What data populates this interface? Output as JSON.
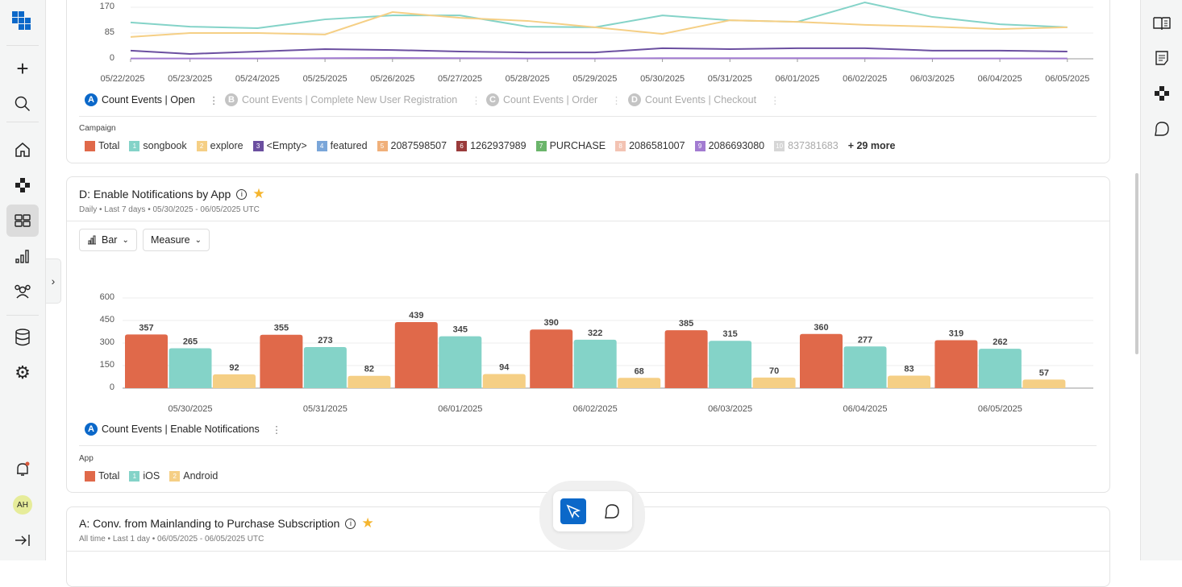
{
  "sidebar": {
    "items": [
      "apps-logo",
      "new",
      "search",
      "home",
      "components",
      "dashboards",
      "reports",
      "users",
      "data",
      "settings",
      "notifications",
      "avatar",
      "collapse"
    ],
    "avatar": "AH",
    "active": "dashboards"
  },
  "right_sidebar": {
    "items": [
      "docs-icon",
      "notes-icon",
      "components-icon",
      "chat-icon"
    ]
  },
  "card1": {
    "queries": [
      {
        "badge": "A",
        "label": "Count Events | Open",
        "active": true
      },
      {
        "badge": "B",
        "label": "Count Events | Complete New User Registration",
        "active": false
      },
      {
        "badge": "C",
        "label": "Count Events | Order",
        "active": false
      },
      {
        "badge": "D",
        "label": "Count Events | Checkout",
        "active": false
      }
    ],
    "legend_title": "Campaign",
    "legend": [
      {
        "n": "",
        "label": "Total",
        "color": "#e0694a"
      },
      {
        "n": "1",
        "label": "songbook",
        "color": "#84d3c8"
      },
      {
        "n": "2",
        "label": "explore",
        "color": "#f5cf85"
      },
      {
        "n": "3",
        "label": "<Empty>",
        "color": "#6b4fa0"
      },
      {
        "n": "4",
        "label": "featured",
        "color": "#7aa6d9"
      },
      {
        "n": "5",
        "label": "2087598507",
        "color": "#f0b07a"
      },
      {
        "n": "6",
        "label": "1262937989",
        "color": "#9a3b3b"
      },
      {
        "n": "7",
        "label": "PURCHASE",
        "color": "#6bb56b"
      },
      {
        "n": "8",
        "label": "2086581007",
        "color": "#f3c3b3"
      },
      {
        "n": "9",
        "label": "2086693080",
        "color": "#a27bd1"
      },
      {
        "n": "10",
        "label": "837381683",
        "color": "#bbbbbb",
        "dim": true
      }
    ],
    "more": "+ 29 more"
  },
  "card2": {
    "title": "D: Enable Notifications by App",
    "subtitle": "Daily • Last 7 days • 05/30/2025 - 06/05/2025 UTC",
    "chart_type_btn": "Bar",
    "measure_btn": "Measure",
    "query": {
      "badge": "A",
      "label": "Count Events | Enable Notifications"
    },
    "legend_title": "App",
    "legend": [
      {
        "n": "",
        "label": "Total",
        "color": "#e0694a"
      },
      {
        "n": "1",
        "label": "iOS",
        "color": "#84d3c8"
      },
      {
        "n": "2",
        "label": "Android",
        "color": "#f5cf85"
      }
    ]
  },
  "card3": {
    "title": "A: Conv. from Mainlanding to Purchase Subscription",
    "subtitle": "All time • Last 1 day • 06/05/2025 - 06/05/2025 UTC"
  },
  "chart_data": [
    {
      "type": "line",
      "x": [
        "05/22/2025",
        "05/23/2025",
        "05/24/2025",
        "05/25/2025",
        "05/26/2025",
        "05/27/2025",
        "05/28/2025",
        "05/29/2025",
        "05/30/2025",
        "05/31/2025",
        "06/01/2025",
        "06/02/2025",
        "06/03/2025",
        "06/04/2025",
        "06/05/2025"
      ],
      "yticks": [
        "0",
        "85",
        "170"
      ],
      "ylim": [
        0,
        170
      ],
      "grid": true,
      "series": [
        {
          "name": "songbook",
          "color": "#84d3c8",
          "values": [
            120,
            106,
            101,
            130,
            143,
            143,
            106,
            104,
            143,
            127,
            122,
            186,
            138,
            114,
            104
          ]
        },
        {
          "name": "explore",
          "color": "#f5cf85",
          "values": [
            72,
            85,
            85,
            80,
            154,
            135,
            125,
            104,
            82,
            127,
            122,
            112,
            106,
            98,
            104
          ]
        },
        {
          "name": "<Empty>",
          "color": "#6b4fa0",
          "values": [
            27,
            16,
            24,
            32,
            29,
            24,
            21,
            21,
            35,
            32,
            35,
            35,
            27,
            27,
            24
          ]
        },
        {
          "color": "#a27bd1",
          "values": [
            1,
            1,
            1,
            2,
            3,
            2,
            1,
            1,
            2,
            2,
            2,
            2,
            1,
            1,
            1
          ]
        }
      ]
    },
    {
      "type": "bar",
      "categories": [
        "05/30/2025",
        "05/31/2025",
        "06/01/2025",
        "06/02/2025",
        "06/03/2025",
        "06/04/2025",
        "06/05/2025"
      ],
      "yticks": [
        "0",
        "150",
        "300",
        "450",
        "600"
      ],
      "ylim": [
        0,
        600
      ],
      "grid": true,
      "series": [
        {
          "name": "Total",
          "color": "#e0694a",
          "values": [
            357,
            355,
            439,
            390,
            385,
            360,
            319
          ]
        },
        {
          "name": "iOS",
          "color": "#84d3c8",
          "values": [
            265,
            273,
            345,
            322,
            315,
            277,
            262
          ]
        },
        {
          "name": "Android",
          "color": "#f5cf85",
          "values": [
            92,
            82,
            94,
            68,
            70,
            83,
            57
          ]
        }
      ]
    }
  ]
}
